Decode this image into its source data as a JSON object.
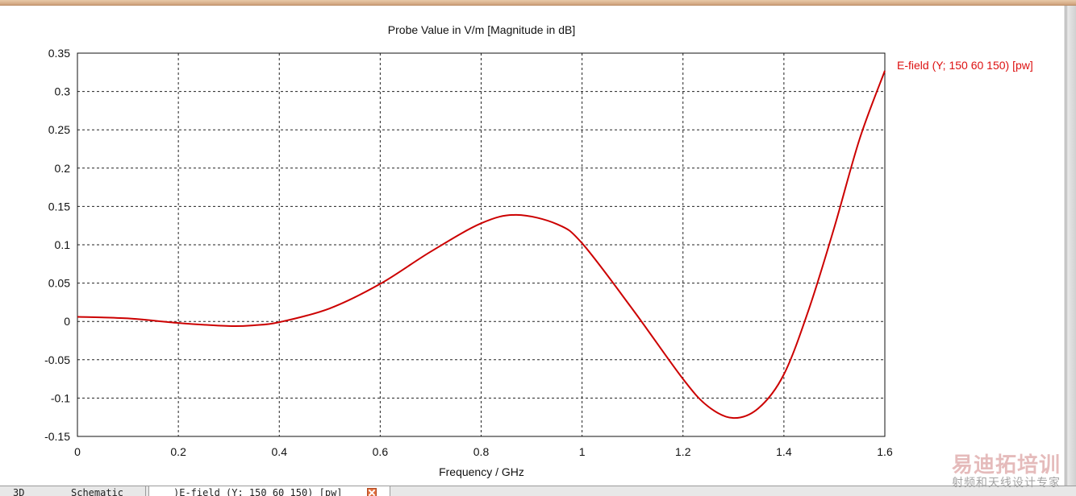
{
  "window": {
    "tabs": [
      {
        "label": "3D"
      },
      {
        "label": "Schematic"
      },
      {
        "label": ")E-field (Y; 150 60 150) [pw]"
      }
    ]
  },
  "watermark": {
    "main": "易迪拓培训",
    "sub": "射频和天线设计专家"
  },
  "chart_data": {
    "type": "line",
    "title": "Probe Value in V/m [Magnitude in dB]",
    "xlabel": "Frequency / GHz",
    "ylabel": "",
    "xlim": [
      0,
      1.6
    ],
    "ylim": [
      -0.15,
      0.35
    ],
    "x_ticks": [
      "0",
      "0.2",
      "0.4",
      "0.6",
      "0.8",
      "1",
      "1.2",
      "1.4",
      "1.6"
    ],
    "y_ticks": [
      "0.35",
      "0.3",
      "0.25",
      "0.2",
      "0.15",
      "0.1",
      "0.05",
      "0",
      "-0.05",
      "-0.1",
      "-0.15"
    ],
    "grid": true,
    "legend_position": "right",
    "color": "#cc0000",
    "series": [
      {
        "name": "E-field (Y; 150 60 150) [pw]",
        "x": [
          0,
          0.1,
          0.2,
          0.3,
          0.35,
          0.4,
          0.5,
          0.6,
          0.7,
          0.8,
          0.87,
          0.95,
          1.0,
          1.1,
          1.2,
          1.25,
          1.3,
          1.35,
          1.4,
          1.45,
          1.5,
          1.55,
          1.6
        ],
        "y": [
          0.006,
          0.004,
          -0.002,
          -0.006,
          -0.005,
          -0.001,
          0.017,
          0.049,
          0.091,
          0.128,
          0.139,
          0.127,
          0.102,
          0.016,
          -0.075,
          -0.111,
          -0.126,
          -0.113,
          -0.069,
          0.017,
          0.123,
          0.238,
          0.327
        ]
      }
    ]
  }
}
